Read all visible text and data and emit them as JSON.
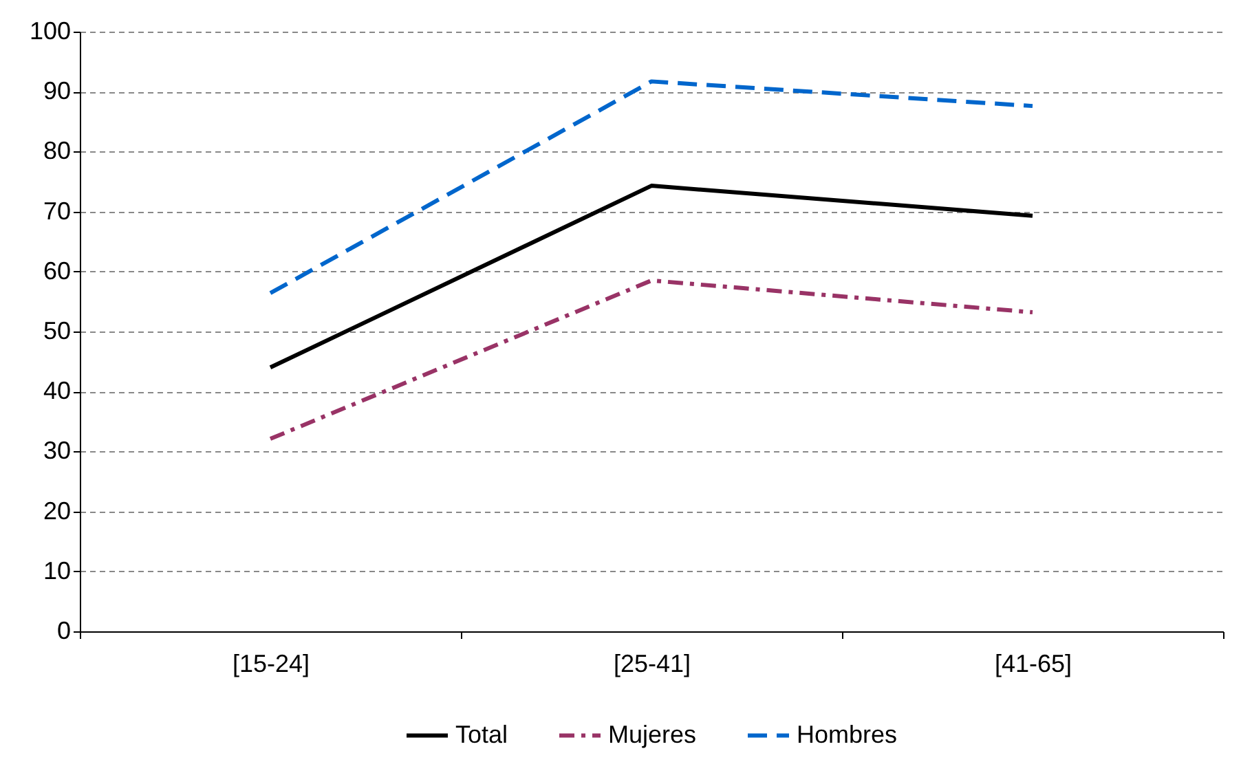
{
  "chart_data": {
    "type": "line",
    "categories": [
      "[15-24]",
      "[25-41]",
      "[41-65]"
    ],
    "series": [
      {
        "name": "Total",
        "color": "#000000",
        "line_style": "solid",
        "values": [
          44.0,
          74.3,
          69.3
        ]
      },
      {
        "name": "Mujeres",
        "color": "#993366",
        "line_style": "dashdot",
        "values": [
          32.1,
          58.5,
          53.2
        ]
      },
      {
        "name": "Hombres",
        "color": "#0066cc",
        "line_style": "dashed",
        "values": [
          56.4,
          91.7,
          87.6
        ]
      }
    ],
    "ylim": [
      0,
      100
    ],
    "yticks": [
      0,
      10,
      20,
      30,
      40,
      50,
      60,
      70,
      80,
      90,
      100
    ],
    "grid": "y",
    "legend": "bottom",
    "marker": "none"
  }
}
